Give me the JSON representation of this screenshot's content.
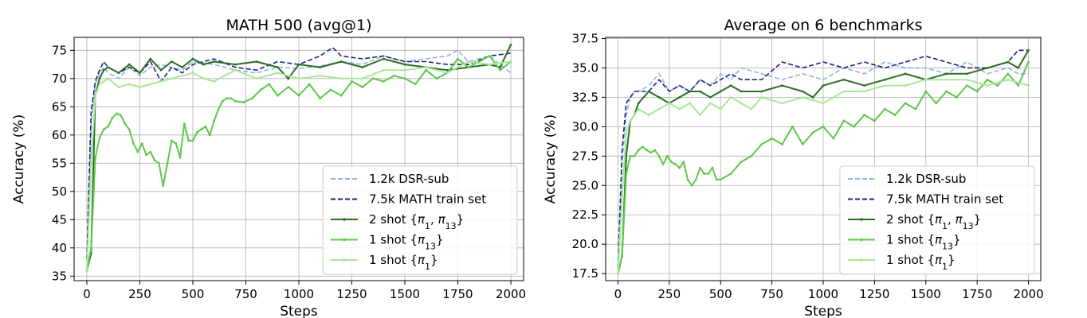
{
  "chart_data": [
    {
      "type": "line",
      "title": "MATH 500 (avg@1)",
      "xlabel": "Steps",
      "ylabel": "Accuracy (%)",
      "xlim": [
        -60,
        2060
      ],
      "ylim": [
        34.2,
        77.3
      ],
      "xticks": [
        0,
        250,
        500,
        750,
        1000,
        1250,
        1500,
        1750,
        2000
      ],
      "yticks": [
        35,
        40,
        45,
        50,
        55,
        60,
        65,
        70,
        75
      ],
      "grid": true,
      "legend_position": "lower-right",
      "series": [
        {
          "name": "1.2k DSR-sub",
          "label_parts": [
            "1.2k DSR-sub"
          ],
          "color": "#8fb3e0",
          "dash": "dashed",
          "x": [
            0,
            20,
            40,
            60,
            80,
            100,
            150,
            200,
            250,
            300,
            350,
            400,
            450,
            500,
            600,
            700,
            800,
            900,
            1000,
            1100,
            1200,
            1300,
            1400,
            1500,
            1600,
            1700,
            1750,
            1800,
            1900,
            2000
          ],
          "y": [
            36,
            62,
            69,
            71,
            72,
            71,
            70,
            72,
            70.5,
            72,
            72.5,
            72,
            71.5,
            73,
            72.5,
            71.5,
            71,
            72,
            71.8,
            72.2,
            73,
            72.5,
            74,
            73,
            73.5,
            74,
            75,
            73,
            74,
            71
          ]
        },
        {
          "name": "7.5k MATH train set",
          "label_parts": [
            "7.5k MATH train set"
          ],
          "color": "#1a237e",
          "dash": "dashed",
          "x": [
            0,
            20,
            40,
            60,
            80,
            100,
            150,
            200,
            250,
            300,
            350,
            400,
            450,
            500,
            600,
            700,
            800,
            900,
            1000,
            1100,
            1160,
            1200,
            1300,
            1400,
            1500,
            1600,
            1700,
            1800,
            1900,
            2000
          ],
          "y": [
            38,
            64,
            69.5,
            71.5,
            73,
            72,
            71,
            72,
            71,
            73,
            69.5,
            72,
            71,
            72.5,
            73.5,
            72,
            71.5,
            73,
            72.5,
            74,
            75.5,
            74,
            73.5,
            74,
            73,
            73,
            72.5,
            72.5,
            74,
            74.5
          ]
        },
        {
          "name": "2 shot {π1, π13}",
          "label_parts": [
            "2 shot {",
            "π",
            "1",
            ", ",
            "π",
            "13",
            "}"
          ],
          "color": "#2e6b23",
          "dash": "solid",
          "x": [
            0,
            20,
            40,
            60,
            80,
            100,
            150,
            200,
            250,
            300,
            350,
            400,
            450,
            500,
            550,
            600,
            700,
            800,
            900,
            950,
            1000,
            1100,
            1200,
            1300,
            1400,
            1500,
            1600,
            1700,
            1800,
            1900,
            1950,
            2000
          ],
          "y": [
            36,
            39,
            67,
            70,
            71.5,
            72,
            71,
            72.5,
            71,
            73.5,
            71.5,
            73,
            72,
            73.5,
            72.5,
            73,
            72.5,
            73,
            72,
            70,
            72.5,
            72,
            73,
            72,
            73.5,
            72.5,
            72,
            71.5,
            72,
            72.5,
            72,
            76
          ]
        },
        {
          "name": "1 shot {π13}",
          "label_parts": [
            "1 shot {",
            "π",
            "13",
            "}"
          ],
          "color": "#5cc84a",
          "dash": "solid",
          "x": [
            0,
            20,
            40,
            60,
            80,
            100,
            120,
            140,
            160,
            180,
            200,
            220,
            240,
            260,
            280,
            300,
            320,
            340,
            360,
            380,
            400,
            420,
            440,
            460,
            480,
            500,
            520,
            540,
            560,
            580,
            600,
            620,
            640,
            660,
            680,
            700,
            740,
            780,
            820,
            860,
            900,
            950,
            1000,
            1050,
            1100,
            1150,
            1200,
            1250,
            1300,
            1350,
            1400,
            1450,
            1500,
            1550,
            1600,
            1650,
            1700,
            1750,
            1800,
            1850,
            1900,
            1950,
            2000
          ],
          "y": [
            36,
            40,
            56,
            59.5,
            61,
            61.5,
            63,
            63.8,
            63.5,
            62,
            61,
            58.5,
            57,
            58.5,
            56.5,
            57,
            55.5,
            55,
            51,
            55,
            59,
            58.5,
            56,
            62,
            59,
            59,
            60.5,
            61,
            61.5,
            60,
            62.5,
            64.5,
            66,
            66.5,
            66.5,
            66,
            65.8,
            66.5,
            68,
            69,
            67,
            68.5,
            67,
            69,
            66.5,
            68,
            67,
            69.5,
            68.5,
            70,
            69.5,
            70.5,
            70,
            69,
            71.5,
            70,
            71,
            73.5,
            72,
            73,
            74,
            71.5,
            73
          ]
        },
        {
          "name": "1 shot {π1}",
          "label_parts": [
            "1 shot {",
            "π",
            "1",
            "}"
          ],
          "color": "#a8e89a",
          "dash": "solid",
          "x": [
            0,
            20,
            40,
            60,
            80,
            100,
            150,
            200,
            250,
            300,
            350,
            400,
            450,
            500,
            550,
            600,
            650,
            700,
            800,
            900,
            1000,
            1100,
            1200,
            1300,
            1400,
            1500,
            1600,
            1700,
            1800,
            1900,
            2000
          ],
          "y": [
            36,
            55,
            67,
            69,
            69.5,
            70,
            68.5,
            69,
            68.5,
            69,
            69.5,
            70,
            70.5,
            71,
            70,
            69.5,
            70.5,
            71.5,
            70,
            71,
            70,
            70.5,
            70,
            70,
            71.5,
            71.5,
            72,
            71,
            73,
            72.5,
            73
          ]
        }
      ]
    },
    {
      "type": "line",
      "title": "Average on 6 benchmarks",
      "xlabel": "Steps",
      "ylabel": "Accuracy (%)",
      "xlim": [
        -60,
        2060
      ],
      "ylim": [
        16.9,
        37.6
      ],
      "xticks": [
        0,
        250,
        500,
        750,
        1000,
        1250,
        1500,
        1750,
        2000
      ],
      "yticks": [
        17.5,
        20.0,
        22.5,
        25.0,
        27.5,
        30.0,
        32.5,
        35.0,
        37.5
      ],
      "ytick_labels": [
        "17.5",
        "20.0",
        "22.5",
        "25.0",
        "27.5",
        "30.0",
        "32.5",
        "35.0",
        "37.5"
      ],
      "grid": true,
      "legend_position": "lower-right",
      "series": [
        {
          "name": "1.2k DSR-sub",
          "label_parts": [
            "1.2k DSR-sub"
          ],
          "color": "#8fb3e0",
          "dash": "dashed",
          "x": [
            0,
            20,
            40,
            60,
            80,
            100,
            150,
            200,
            250,
            300,
            350,
            400,
            450,
            500,
            550,
            600,
            700,
            800,
            900,
            1000,
            1100,
            1200,
            1300,
            1400,
            1500,
            1600,
            1700,
            1800,
            1900,
            1950,
            2000
          ],
          "y": [
            17.5,
            27,
            31,
            32.5,
            33,
            33,
            33.5,
            34.5,
            33,
            33.5,
            33,
            34,
            33.5,
            34.5,
            34,
            35,
            34.5,
            34,
            34.5,
            34,
            35,
            34.5,
            35.5,
            35,
            35,
            34.5,
            35.5,
            34.5,
            35,
            34.5,
            34.5
          ]
        },
        {
          "name": "7.5k MATH train set",
          "label_parts": [
            "7.5k MATH train set"
          ],
          "color": "#1a237e",
          "dash": "dashed",
          "x": [
            0,
            20,
            40,
            60,
            80,
            100,
            150,
            200,
            250,
            300,
            350,
            400,
            450,
            500,
            550,
            600,
            700,
            800,
            900,
            1000,
            1100,
            1200,
            1300,
            1400,
            1500,
            1600,
            1700,
            1800,
            1900,
            1950,
            2000
          ],
          "y": [
            18,
            28,
            32,
            32.5,
            33,
            33,
            33,
            34,
            33,
            33.5,
            33,
            34,
            33.5,
            34,
            34.5,
            34,
            34,
            35.5,
            35,
            35.5,
            35,
            35.5,
            35,
            35.5,
            36,
            35.5,
            35,
            35,
            35.5,
            36.5,
            36.5
          ]
        },
        {
          "name": "2 shot {π1, π13}",
          "label_parts": [
            "2 shot {",
            "π",
            "1",
            ", ",
            "π",
            "13",
            "}"
          ],
          "color": "#2e6b23",
          "dash": "solid",
          "x": [
            0,
            20,
            40,
            60,
            80,
            100,
            150,
            200,
            250,
            300,
            350,
            400,
            450,
            500,
            550,
            600,
            700,
            800,
            900,
            950,
            1000,
            1100,
            1200,
            1300,
            1400,
            1500,
            1600,
            1700,
            1800,
            1900,
            1950,
            2000
          ],
          "y": [
            17.5,
            19,
            27.5,
            30.5,
            31,
            32,
            33,
            32.5,
            32,
            32.5,
            33,
            33,
            32.5,
            33,
            33.5,
            33,
            33,
            33.5,
            33,
            32.5,
            33.5,
            34,
            33.5,
            34,
            34.5,
            34,
            34.5,
            34.5,
            35,
            35.5,
            35,
            36.5
          ]
        },
        {
          "name": "1 shot {π13}",
          "label_parts": [
            "1 shot {",
            "π",
            "13",
            "}"
          ],
          "color": "#5cc84a",
          "dash": "solid",
          "x": [
            0,
            20,
            40,
            60,
            80,
            100,
            120,
            140,
            160,
            180,
            200,
            220,
            240,
            260,
            280,
            300,
            320,
            340,
            360,
            380,
            400,
            420,
            440,
            460,
            480,
            500,
            550,
            600,
            650,
            700,
            750,
            800,
            850,
            900,
            950,
            1000,
            1050,
            1100,
            1150,
            1200,
            1250,
            1300,
            1350,
            1400,
            1450,
            1500,
            1550,
            1600,
            1650,
            1700,
            1750,
            1800,
            1850,
            1900,
            1950,
            2000
          ],
          "y": [
            17.5,
            19,
            26,
            27.5,
            27.5,
            28,
            28.3,
            28,
            27.8,
            28,
            27.5,
            26.8,
            27.5,
            27,
            26.8,
            26.5,
            27,
            25.5,
            25,
            25.5,
            26.5,
            26,
            26,
            26.5,
            25.5,
            25.5,
            26,
            27,
            27.5,
            28.5,
            29,
            28.5,
            30,
            28.5,
            29.5,
            30,
            29,
            30.5,
            30,
            31,
            30.5,
            31.5,
            31,
            32,
            31.5,
            33,
            32,
            33,
            32.5,
            33.5,
            33,
            34,
            33.5,
            34.5,
            33.5,
            35.5
          ]
        },
        {
          "name": "1 shot {π1}",
          "label_parts": [
            "1 shot {",
            "π",
            "1",
            "}"
          ],
          "color": "#a8e89a",
          "dash": "solid",
          "x": [
            0,
            20,
            40,
            60,
            80,
            100,
            150,
            200,
            250,
            300,
            350,
            400,
            450,
            500,
            550,
            600,
            650,
            700,
            800,
            900,
            1000,
            1100,
            1200,
            1300,
            1400,
            1500,
            1600,
            1700,
            1800,
            1900,
            2000
          ],
          "y": [
            17.5,
            24,
            29.5,
            30.5,
            31,
            31.5,
            31,
            31.5,
            32,
            31.5,
            32,
            31,
            32,
            31.5,
            32.5,
            32,
            31.5,
            32.5,
            32,
            32.5,
            32,
            33,
            33,
            33.5,
            33.5,
            34,
            34,
            34,
            33.5,
            34,
            33.5
          ]
        }
      ]
    }
  ]
}
